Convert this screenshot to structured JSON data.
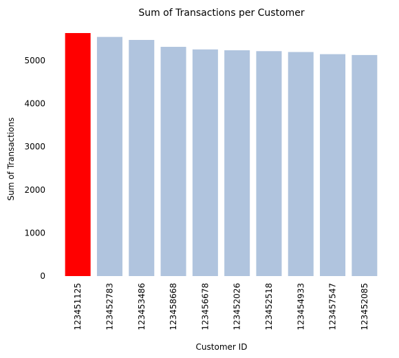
{
  "chart_data": {
    "type": "bar",
    "title": "Sum of Transactions per Customer",
    "xlabel": "Customer ID",
    "ylabel": "Sum of Transactions",
    "categories": [
      "123451125",
      "123452783",
      "123453486",
      "123458668",
      "123456678",
      "123452026",
      "123452518",
      "123454933",
      "123457547",
      "123452085"
    ],
    "values": [
      5640,
      5550,
      5480,
      5320,
      5260,
      5240,
      5220,
      5200,
      5150,
      5130
    ],
    "yticks": [
      0,
      1000,
      2000,
      3000,
      4000,
      5000
    ],
    "ylim": [
      0,
      5640
    ],
    "grid": false,
    "colors": {
      "highlight": "#ff0000",
      "default": "#b0c4de"
    },
    "highlight_index": 0
  }
}
